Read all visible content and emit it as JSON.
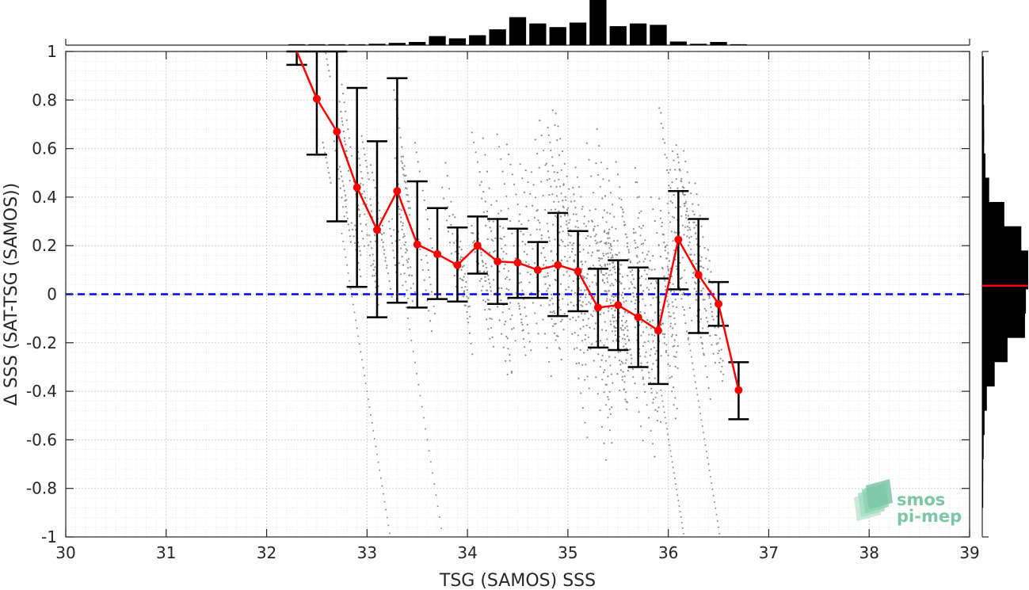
{
  "chart_data": {
    "type": "scatter",
    "xlabel": "TSG (SAMOS) SSS",
    "ylabel": "Δ SSS (SAT-TSG (SAMOS))",
    "xlim": [
      30,
      39
    ],
    "ylim": [
      -1,
      1
    ],
    "x_ticks": [
      "30",
      "31",
      "32",
      "33",
      "34",
      "35",
      "36",
      "37",
      "38",
      "39"
    ],
    "y_ticks": [
      "-1",
      "-0.8",
      "-0.6",
      "-0.4",
      "-0.2",
      "0",
      "0.2",
      "0.4",
      "0.6",
      "0.8",
      "1"
    ],
    "grid": true,
    "reference_line": {
      "y": 0,
      "style": "dashed",
      "color": "#0000ff"
    },
    "scatter_color": "#8c8c8c",
    "binned_series": {
      "color": "#ff0000",
      "errorbar_color": "#000000",
      "x": [
        32.3,
        32.5,
        32.7,
        32.9,
        33.1,
        33.3,
        33.5,
        33.7,
        33.9,
        34.1,
        34.3,
        34.5,
        34.7,
        34.9,
        35.1,
        35.3,
        35.5,
        35.7,
        35.9,
        36.1,
        36.3,
        36.5,
        36.7
      ],
      "mean": [
        1.0,
        0.805,
        0.67,
        0.44,
        0.265,
        0.425,
        0.205,
        0.165,
        0.12,
        0.2,
        0.135,
        0.13,
        0.1,
        0.12,
        0.095,
        -0.055,
        -0.045,
        -0.095,
        -0.15,
        0.225,
        0.08,
        -0.04,
        -0.395
      ],
      "low": [
        0.945,
        0.575,
        0.3,
        0.03,
        -0.095,
        -0.035,
        -0.055,
        -0.02,
        -0.03,
        0.085,
        -0.04,
        -0.015,
        -0.015,
        -0.09,
        -0.07,
        -0.22,
        -0.23,
        -0.3,
        -0.37,
        0.02,
        -0.16,
        -0.13,
        -0.515
      ],
      "high": [
        1.0,
        1.0,
        1.0,
        0.85,
        0.63,
        0.89,
        0.465,
        0.355,
        0.275,
        0.32,
        0.31,
        0.27,
        0.215,
        0.335,
        0.26,
        0.105,
        0.14,
        0.11,
        0.065,
        0.425,
        0.31,
        0.05,
        -0.28
      ]
    },
    "x_histogram": {
      "bin_centers": [
        32.3,
        32.5,
        32.7,
        32.9,
        33.1,
        33.3,
        33.5,
        33.7,
        33.9,
        34.1,
        34.3,
        34.5,
        34.7,
        34.9,
        35.1,
        35.3,
        35.5,
        35.7,
        35.9,
        36.1,
        36.3,
        36.5,
        36.7
      ],
      "counts": [
        0.02,
        0.02,
        0.02,
        0.02,
        0.03,
        0.05,
        0.07,
        0.2,
        0.15,
        0.22,
        0.35,
        0.62,
        0.48,
        0.4,
        0.5,
        1.0,
        0.42,
        0.48,
        0.45,
        0.08,
        0.03,
        0.07,
        0.02
      ]
    },
    "y_histogram": {
      "bin_centers": [
        0.9,
        0.8,
        0.7,
        0.6,
        0.5,
        0.4,
        0.3,
        0.2,
        0.1,
        0.0,
        -0.1,
        -0.2,
        -0.3,
        -0.4,
        -0.5,
        -0.6,
        -0.7,
        -0.8
      ],
      "counts": [
        0.03,
        0.03,
        0.04,
        0.04,
        0.07,
        0.15,
        0.48,
        0.85,
        1.0,
        0.95,
        0.93,
        0.55,
        0.27,
        0.1,
        0.05,
        0.03,
        0.02,
        0.02
      ],
      "median_line": 0.035
    }
  },
  "logo": {
    "line1": "smos",
    "line2": "pi-mep"
  }
}
